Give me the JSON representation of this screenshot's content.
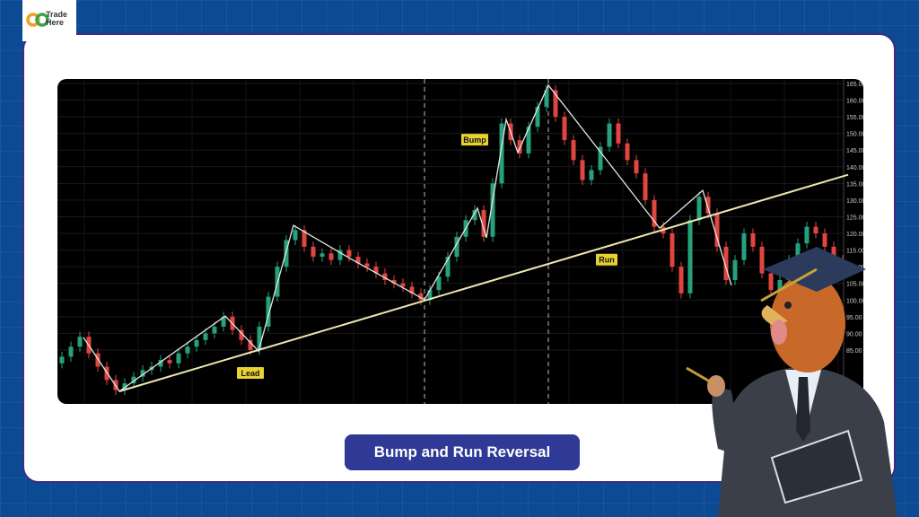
{
  "brand": {
    "logo_text_line1": "Trade",
    "logo_text_line2": "Here",
    "logo_colors": [
      "#f2a11c",
      "#3aa54a"
    ]
  },
  "title": "Bump and Run Reversal",
  "colors": {
    "background": "#0c4a93",
    "card_border": "#3b2c84",
    "title_button": "#2f3996",
    "up": "#26a17b",
    "down": "#e0463f",
    "zigzag": "#e6e6e6",
    "trendline": "#efe6b4",
    "label_bg": "#e8d232"
  },
  "mascot": {
    "icon": "chicken-head-businessman-with-graduation-cap-and-notebook"
  },
  "chart_data": {
    "type": "candlestick",
    "title": "",
    "xlabel": "",
    "ylabel": "",
    "ylim": [
      82,
      166
    ],
    "yticks": [
      "165.00",
      "160.00",
      "155.00",
      "150.00",
      "145.00",
      "140.00",
      "135.00",
      "130.00",
      "125.00",
      "120.00",
      "115.00",
      "110.00",
      "105.00",
      "100.00",
      "95.00",
      "90.00",
      "85.00"
    ],
    "grid": true,
    "closes": [
      83,
      86,
      89,
      84,
      80,
      76,
      73,
      75,
      77,
      79,
      80,
      82,
      81,
      84,
      86,
      88,
      90,
      92,
      95,
      91,
      88,
      85,
      92,
      101,
      110,
      118,
      121,
      116,
      113,
      114,
      112,
      115,
      113,
      111,
      110,
      108,
      106,
      105,
      104,
      102,
      100,
      103,
      107,
      113,
      119,
      124,
      127,
      119,
      135,
      153,
      148,
      144,
      152,
      158,
      163,
      155,
      148,
      142,
      136,
      139,
      146,
      153,
      147,
      142,
      138,
      130,
      122,
      120,
      110,
      102,
      124,
      131,
      126,
      116,
      106,
      112,
      120,
      116,
      108,
      103,
      106,
      112,
      117,
      122,
      120,
      116,
      112,
      110
    ],
    "zigzag": [
      [
        2.4,
        88.8
      ],
      [
        6.4,
        72.6
      ],
      [
        18.2,
        95.2
      ],
      [
        21.9,
        84.7
      ],
      [
        25.8,
        122.4
      ],
      [
        32.1,
        112.5
      ],
      [
        40.4,
        100.1
      ],
      [
        46.3,
        127.6
      ],
      [
        47.3,
        118.7
      ],
      [
        49.5,
        154.2
      ],
      [
        50.8,
        144.3
      ],
      [
        54.2,
        164.5
      ],
      [
        66.6,
        121.6
      ],
      [
        71.4,
        132.9
      ],
      [
        74.6,
        104.4
      ]
    ],
    "trendline": [
      [
        6.4,
        72.6
      ],
      [
        87.6,
        137.6
      ]
    ],
    "phase_dividers": [
      40.4,
      54.2
    ],
    "annotations": [
      {
        "text": "Lead",
        "x": 21,
        "y": 78
      },
      {
        "text": "Bump",
        "x": 46,
        "y": 148
      },
      {
        "text": "Run",
        "x": 60.7,
        "y": 112
      }
    ]
  }
}
